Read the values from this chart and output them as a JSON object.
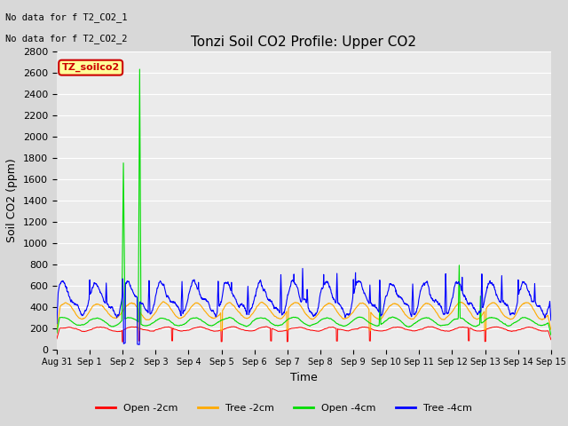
{
  "title": "Tonzi Soil CO2 Profile: Upper CO2",
  "xlabel": "Time",
  "ylabel": "Soil CO2 (ppm)",
  "ylim": [
    0,
    2800
  ],
  "yticks": [
    0,
    200,
    400,
    600,
    800,
    1000,
    1200,
    1400,
    1600,
    1800,
    2000,
    2200,
    2400,
    2600,
    2800
  ],
  "annotations": [
    "No data for f T2_CO2_1",
    "No data for f T2_CO2_2"
  ],
  "legend_box_label": "TZ_soilco2",
  "legend_box_color": "#cc0000",
  "legend_box_bg": "#ffff99",
  "colors": {
    "open_2cm": "#ff0000",
    "tree_2cm": "#ffaa00",
    "open_4cm": "#00dd00",
    "tree_4cm": "#0000ff"
  },
  "line_labels": [
    "Open -2cm",
    "Tree -2cm",
    "Open -4cm",
    "Tree -4cm"
  ],
  "bg_color": "#d8d8d8",
  "plot_bg": "#ebebeb",
  "n_points": 2160,
  "xtick_labels": [
    "Aug 31",
    "Sep 1",
    "Sep 2",
    "Sep 3",
    "Sep 4",
    "Sep 5",
    "Sep 6",
    "Sep 7",
    "Sep 8",
    "Sep 9",
    "Sep 10",
    "Sep 11",
    "Sep 12",
    "Sep 13",
    "Sep 14",
    "Sep 15"
  ]
}
